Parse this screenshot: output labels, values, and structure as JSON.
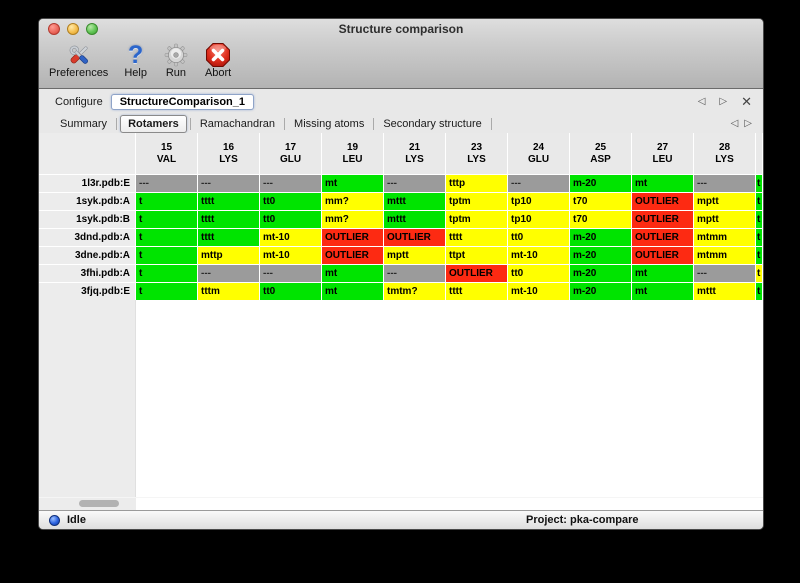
{
  "window": {
    "title": "Structure comparison"
  },
  "toolbar": {
    "buttons": [
      {
        "label": "Preferences",
        "icon": "tools-icon"
      },
      {
        "label": "Help",
        "icon": "help-icon"
      },
      {
        "label": "Run",
        "icon": "gear-icon"
      },
      {
        "label": "Abort",
        "icon": "abort-icon"
      }
    ]
  },
  "configure": {
    "label": "Configure",
    "value": "StructureComparison_1",
    "nav": {
      "prev": "◁",
      "next": "▷",
      "close": "✕"
    }
  },
  "tabs": {
    "items": [
      "Summary",
      "Rotamers",
      "Ramachandran",
      "Missing atoms",
      "Secondary structure"
    ],
    "selected": "Rotamers",
    "nav": {
      "prev": "◁",
      "next": "▷"
    }
  },
  "table": {
    "status_colors": {
      "ok": "#00e400",
      "warn": "#ffff00",
      "outlier": "#fd2a12",
      "na": "#9b9b9b"
    },
    "columns": [
      {
        "num": "15",
        "res": "VAL"
      },
      {
        "num": "16",
        "res": "LYS"
      },
      {
        "num": "17",
        "res": "GLU"
      },
      {
        "num": "19",
        "res": "LEU"
      },
      {
        "num": "21",
        "res": "LYS"
      },
      {
        "num": "23",
        "res": "LYS"
      },
      {
        "num": "24",
        "res": "GLU"
      },
      {
        "num": "25",
        "res": "ASP"
      },
      {
        "num": "27",
        "res": "LEU"
      },
      {
        "num": "28",
        "res": "LYS"
      }
    ],
    "rows": [
      {
        "name": "1l3r.pdb:E",
        "cells": [
          {
            "t": "---",
            "s": "na"
          },
          {
            "t": "---",
            "s": "na"
          },
          {
            "t": "---",
            "s": "na"
          },
          {
            "t": "mt",
            "s": "ok"
          },
          {
            "t": "---",
            "s": "na"
          },
          {
            "t": "tttp",
            "s": "warn"
          },
          {
            "t": "---",
            "s": "na"
          },
          {
            "t": "m-20",
            "s": "ok"
          },
          {
            "t": "mt",
            "s": "ok"
          },
          {
            "t": "---",
            "s": "na"
          }
        ],
        "edge": {
          "t": "t",
          "s": "ok"
        }
      },
      {
        "name": "1syk.pdb:A",
        "cells": [
          {
            "t": "t",
            "s": "ok"
          },
          {
            "t": "tttt",
            "s": "ok"
          },
          {
            "t": "tt0",
            "s": "ok"
          },
          {
            "t": "mm?",
            "s": "warn"
          },
          {
            "t": "mttt",
            "s": "ok"
          },
          {
            "t": "tptm",
            "s": "warn"
          },
          {
            "t": "tp10",
            "s": "warn"
          },
          {
            "t": "t70",
            "s": "warn"
          },
          {
            "t": "OUTLIER",
            "s": "outlier"
          },
          {
            "t": "mptt",
            "s": "warn"
          }
        ],
        "edge": {
          "t": "t",
          "s": "ok"
        }
      },
      {
        "name": "1syk.pdb:B",
        "cells": [
          {
            "t": "t",
            "s": "ok"
          },
          {
            "t": "tttt",
            "s": "ok"
          },
          {
            "t": "tt0",
            "s": "ok"
          },
          {
            "t": "mm?",
            "s": "warn"
          },
          {
            "t": "mttt",
            "s": "ok"
          },
          {
            "t": "tptm",
            "s": "warn"
          },
          {
            "t": "tp10",
            "s": "warn"
          },
          {
            "t": "t70",
            "s": "warn"
          },
          {
            "t": "OUTLIER",
            "s": "outlier"
          },
          {
            "t": "mptt",
            "s": "warn"
          }
        ],
        "edge": {
          "t": "t",
          "s": "ok"
        }
      },
      {
        "name": "3dnd.pdb:A",
        "cells": [
          {
            "t": "t",
            "s": "ok"
          },
          {
            "t": "tttt",
            "s": "ok"
          },
          {
            "t": "mt-10",
            "s": "warn"
          },
          {
            "t": "OUTLIER",
            "s": "outlier"
          },
          {
            "t": "OUTLIER",
            "s": "outlier"
          },
          {
            "t": "tttt",
            "s": "warn"
          },
          {
            "t": "tt0",
            "s": "warn"
          },
          {
            "t": "m-20",
            "s": "ok"
          },
          {
            "t": "OUTLIER",
            "s": "outlier"
          },
          {
            "t": "mtmm",
            "s": "warn"
          }
        ],
        "edge": {
          "t": "t",
          "s": "ok"
        }
      },
      {
        "name": "3dne.pdb:A",
        "cells": [
          {
            "t": "t",
            "s": "ok"
          },
          {
            "t": "mttp",
            "s": "warn"
          },
          {
            "t": "mt-10",
            "s": "warn"
          },
          {
            "t": "OUTLIER",
            "s": "outlier"
          },
          {
            "t": "mptt",
            "s": "warn"
          },
          {
            "t": "ttpt",
            "s": "warn"
          },
          {
            "t": "mt-10",
            "s": "warn"
          },
          {
            "t": "m-20",
            "s": "ok"
          },
          {
            "t": "OUTLIER",
            "s": "outlier"
          },
          {
            "t": "mtmm",
            "s": "warn"
          }
        ],
        "edge": {
          "t": "t",
          "s": "ok"
        }
      },
      {
        "name": "3fhi.pdb:A",
        "cells": [
          {
            "t": "t",
            "s": "ok"
          },
          {
            "t": "---",
            "s": "na"
          },
          {
            "t": "---",
            "s": "na"
          },
          {
            "t": "mt",
            "s": "ok"
          },
          {
            "t": "---",
            "s": "na"
          },
          {
            "t": "OUTLIER",
            "s": "outlier"
          },
          {
            "t": "tt0",
            "s": "warn"
          },
          {
            "t": "m-20",
            "s": "ok"
          },
          {
            "t": "mt",
            "s": "ok"
          },
          {
            "t": "---",
            "s": "na"
          }
        ],
        "edge": {
          "t": "t",
          "s": "warn"
        }
      },
      {
        "name": "3fjq.pdb:E",
        "cells": [
          {
            "t": "t",
            "s": "ok"
          },
          {
            "t": "tttm",
            "s": "warn"
          },
          {
            "t": "tt0",
            "s": "ok"
          },
          {
            "t": "mt",
            "s": "ok"
          },
          {
            "t": "tmtm?",
            "s": "warn"
          },
          {
            "t": "tttt",
            "s": "warn"
          },
          {
            "t": "mt-10",
            "s": "warn"
          },
          {
            "t": "m-20",
            "s": "ok"
          },
          {
            "t": "mt",
            "s": "ok"
          },
          {
            "t": "mttt",
            "s": "warn"
          }
        ],
        "edge": {
          "t": "t",
          "s": "ok"
        }
      }
    ]
  },
  "statusbar": {
    "state": "Idle",
    "project": "Project: pka-compare"
  }
}
